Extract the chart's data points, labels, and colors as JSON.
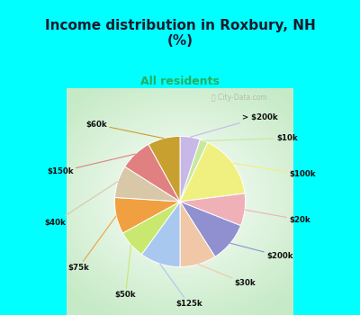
{
  "title": "Income distribution in Roxbury, NH\n(%)",
  "subtitle": "All residents",
  "title_color": "#1a1a2e",
  "subtitle_color": "#27ae60",
  "background_top": "#00ffff",
  "watermark": "City-Data.com",
  "labels": [
    "> $200k",
    "$10k",
    "$100k",
    "$20k",
    "$200k",
    "$30k",
    "$125k",
    "$50k",
    "$75k",
    "$40k",
    "$150k",
    "$60k"
  ],
  "sizes": [
    5,
    2,
    16,
    8,
    10,
    9,
    10,
    7,
    9,
    8,
    8,
    8
  ],
  "colors": [
    "#c8b8e8",
    "#c8e8a0",
    "#f0f080",
    "#f0b0b8",
    "#9090d0",
    "#f0c8a8",
    "#a8c8f0",
    "#c8e870",
    "#f0a040",
    "#d8c8a8",
    "#e08080",
    "#c8a030"
  ],
  "startangle": 90,
  "figsize": [
    4.0,
    3.5
  ],
  "dpi": 100
}
